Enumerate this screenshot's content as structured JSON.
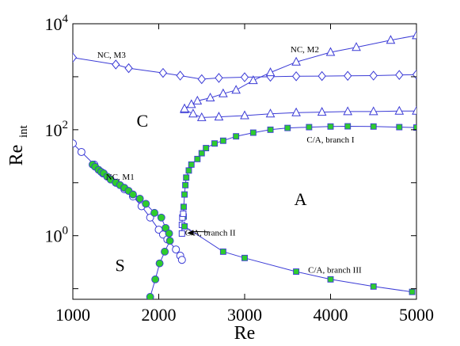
{
  "chart_data": {
    "type": "scatter",
    "xlabel": "Re",
    "ylabel": {
      "base": "Re",
      "sub": "int"
    },
    "xlim": [
      1000,
      5000
    ],
    "ylim_log10": [
      -1.2,
      4
    ],
    "yscale": "log",
    "grid": false,
    "xticks": [
      {
        "value": 1000,
        "label": "1000"
      },
      {
        "value": 2000,
        "label": "2000"
      },
      {
        "value": 3000,
        "label": "3000"
      },
      {
        "value": 4000,
        "label": "4000"
      },
      {
        "value": 5000,
        "label": "5000"
      }
    ],
    "yticks": [
      {
        "value": 1,
        "base": "10",
        "exp": "0"
      },
      {
        "value": 100,
        "base": "10",
        "exp": "2"
      },
      {
        "value": 10000,
        "base": "10",
        "exp": "4"
      }
    ],
    "colors": {
      "line": "#3b3bd6",
      "marker_open": "#3b3bd6",
      "marker_fill": "#2ecc2e"
    },
    "region_labels": [
      {
        "text": "C",
        "x": 1810,
        "y": 150
      },
      {
        "text": "A",
        "x": 3650,
        "y": 5
      },
      {
        "text": "S",
        "x": 1550,
        "y": 0.28
      }
    ],
    "series_labels": [
      {
        "text": "NC, M3",
        "x": 1450,
        "y": 2600
      },
      {
        "text": "NC, M2",
        "x": 3700,
        "y": 3300
      },
      {
        "text": "NC, M1",
        "x": 1550,
        "y": 13
      },
      {
        "text": "C/A, branch I",
        "x": 4000,
        "y": 66
      },
      {
        "text": "C/A, branch II",
        "x": 2600,
        "y": 1.15
      },
      {
        "text": "C/A, branch III",
        "x": 4050,
        "y": 0.23
      }
    ],
    "annotations": [
      {
        "type": "arrow",
        "from": [
          2590,
          1.18
        ],
        "to": [
          2330,
          1.12
        ]
      }
    ],
    "series": [
      {
        "id": "nc-m3",
        "marker": "diamond-open",
        "points": [
          [
            1000,
            2300
          ],
          [
            1500,
            1700
          ],
          [
            1650,
            1450
          ],
          [
            2050,
            1180
          ],
          [
            2250,
            1050
          ],
          [
            2500,
            900
          ],
          [
            2700,
            950
          ],
          [
            3000,
            980
          ],
          [
            3300,
            1000
          ],
          [
            3600,
            1020
          ],
          [
            3900,
            1030
          ],
          [
            4200,
            1040
          ],
          [
            4500,
            1050
          ],
          [
            4800,
            1080
          ],
          [
            5000,
            1100
          ]
        ]
      },
      {
        "id": "nc-m2-lower",
        "marker": "triangle-open",
        "points": [
          [
            2300,
            240
          ],
          [
            2400,
            200
          ],
          [
            2500,
            170
          ],
          [
            2700,
            175
          ],
          [
            3000,
            185
          ],
          [
            3300,
            200
          ],
          [
            3600,
            210
          ],
          [
            3900,
            215
          ],
          [
            4200,
            220
          ],
          [
            4500,
            220
          ],
          [
            4800,
            225
          ],
          [
            5000,
            225
          ]
        ]
      },
      {
        "id": "nc-m2-upper",
        "marker": "triangle-open",
        "points": [
          [
            2300,
            250
          ],
          [
            2380,
            300
          ],
          [
            2450,
            350
          ],
          [
            2600,
            400
          ],
          [
            2750,
            480
          ],
          [
            2900,
            560
          ],
          [
            3100,
            850
          ],
          [
            3300,
            1200
          ],
          [
            3600,
            1900
          ],
          [
            4000,
            2900
          ],
          [
            4300,
            3600
          ],
          [
            4700,
            4900
          ],
          [
            5000,
            6000
          ]
        ]
      },
      {
        "id": "ca-branch-i",
        "marker": "square-filled",
        "points": [
          [
            2290,
            2.3
          ],
          [
            2290,
            3.5
          ],
          [
            2300,
            6
          ],
          [
            2310,
            9
          ],
          [
            2320,
            12.5
          ],
          [
            2350,
            17
          ],
          [
            2380,
            22
          ],
          [
            2450,
            28
          ],
          [
            2500,
            36
          ],
          [
            2550,
            45
          ],
          [
            2650,
            55
          ],
          [
            2750,
            62
          ],
          [
            2900,
            75
          ],
          [
            3100,
            88
          ],
          [
            3300,
            100
          ],
          [
            3500,
            108
          ],
          [
            3750,
            112
          ],
          [
            4000,
            115
          ],
          [
            4200,
            116
          ],
          [
            4500,
            115
          ],
          [
            4800,
            112
          ],
          [
            5000,
            110
          ]
        ]
      },
      {
        "id": "ca-branch-ii",
        "marker": "square-open",
        "points": [
          [
            2270,
            1.1
          ],
          [
            2270,
            1.6
          ],
          [
            2275,
            2.2
          ],
          [
            2285,
            2.6
          ]
        ]
      },
      {
        "id": "ca-branch-iii",
        "marker": "square-filled",
        "points": [
          [
            2300,
            1.5
          ],
          [
            2750,
            0.5
          ],
          [
            3000,
            0.38
          ],
          [
            3600,
            0.21
          ],
          [
            4000,
            0.15
          ],
          [
            4500,
            0.11
          ],
          [
            4950,
            0.087
          ]
        ]
      },
      {
        "id": "nc-m1",
        "marker": "circle-open",
        "points": [
          [
            1000,
            55
          ],
          [
            1100,
            38
          ],
          [
            1250,
            22
          ],
          [
            1350,
            15
          ],
          [
            1500,
            10
          ],
          [
            1600,
            7.5
          ],
          [
            1700,
            5.5
          ],
          [
            1800,
            3.6
          ],
          [
            1900,
            2.2
          ],
          [
            2000,
            1.3
          ],
          [
            2050,
            1.05
          ],
          [
            2100,
            0.85
          ],
          [
            2200,
            0.55
          ],
          [
            2250,
            0.42
          ],
          [
            2270,
            0.35
          ]
        ]
      },
      {
        "id": "nc-m1-green",
        "marker": "circle-filled",
        "points": [
          [
            1230,
            22
          ],
          [
            1260,
            20
          ],
          [
            1300,
            17.5
          ],
          [
            1330,
            16
          ],
          [
            1360,
            15
          ],
          [
            1400,
            13
          ],
          [
            1440,
            11.5
          ],
          [
            1500,
            10
          ],
          [
            1550,
            9
          ],
          [
            1600,
            8
          ],
          [
            1650,
            7
          ],
          [
            1700,
            6
          ],
          [
            1780,
            5
          ],
          [
            1850,
            4
          ],
          [
            1950,
            2.7
          ],
          [
            2030,
            2.2
          ],
          [
            2080,
            1.4
          ],
          [
            2120,
            1.1
          ],
          [
            2130,
            0.8
          ],
          [
            2070,
            0.5
          ],
          [
            2010,
            0.3
          ],
          [
            1960,
            0.15
          ],
          [
            1900,
            0.07
          ]
        ]
      }
    ]
  }
}
